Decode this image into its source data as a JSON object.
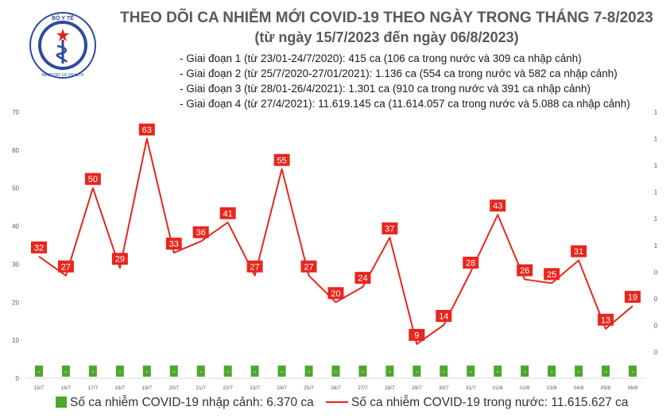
{
  "logo": {
    "top_text": "BỘ Y TẾ",
    "bottom_text": "MINISTRY OF HEALTH"
  },
  "header": {
    "title": "THEO DÕI CA NHIỄM MỚI COVID-19 THEO NGÀY TRONG THÁNG 7-8/2023",
    "subtitle": "(từ ngày 15/7/2023 đến ngày 06/8/2023)"
  },
  "phases": [
    "- Giai đoạn 1 (từ 23/01-24/7/2020): 415 ca (106 ca trong nước và 309 ca nhập cảnh)",
    "- Giai đoạn 2 (từ 25/7/2020-27/01/2021): 1.136 ca (554 ca trong nước và 582 ca nhập cảnh)",
    "- Giai đoạn 3 (từ 28/01-26/4/2021): 1.301 ca (910 ca trong nước và 391 ca nhập cảnh)",
    "- Giai đoạn 4 (từ 27/4/2021): 11.619.145 ca (11.614.057 ca trong nước và 5.088 ca nhập cảnh)"
  ],
  "legend": {
    "imported": "Số ca nhiễm COVID-19 nhập cảnh: 6.370 ca",
    "domestic": "Số ca nhiễm COVID-19 trong nước: 11.615.627 ca"
  },
  "colors": {
    "line": "#e8261d",
    "bar": "#4ea72e",
    "label_box": "#e8261d",
    "axis_text": "#595959"
  },
  "chart_data": {
    "type": "bar+line",
    "categories": [
      "15/7",
      "16/7",
      "17/7",
      "18/7",
      "19/7",
      "20/7",
      "21/7",
      "22/7",
      "23/7",
      "24/7",
      "25/7",
      "26/7",
      "27/7",
      "28/7",
      "29/7",
      "30/7",
      "31/7",
      "01/8",
      "02/8",
      "03/8",
      "04/8",
      "05/8",
      "06/8"
    ],
    "series": [
      {
        "name": "Số ca nhiễm COVID-19 trong nước",
        "type": "line",
        "axis": "left",
        "values": [
          32,
          27,
          50,
          29,
          63,
          33,
          36,
          41,
          27,
          55,
          27,
          20,
          24,
          37,
          9,
          14,
          28,
          43,
          26,
          25,
          31,
          13,
          19
        ]
      },
      {
        "name": "Số ca nhiễm COVID-19 nhập cảnh",
        "type": "bar",
        "axis": "right",
        "values": [
          0,
          0,
          0,
          0,
          0,
          0,
          0,
          0,
          0,
          0,
          0,
          0,
          0,
          0,
          0,
          0,
          0,
          0,
          0,
          0,
          0,
          0,
          0
        ],
        "bar_labels": [
          "-",
          "-",
          "-",
          "-",
          "-",
          "-",
          "-",
          "-",
          "-",
          "-",
          "-",
          "-",
          "-",
          "-",
          "-",
          "-",
          "-",
          "-",
          "-",
          "-",
          "-",
          "-",
          "-"
        ]
      }
    ],
    "y_left": {
      "ticks": [
        0,
        10,
        20,
        30,
        40,
        50,
        60,
        70
      ],
      "ylim": [
        0,
        70
      ]
    },
    "y_right": {
      "tick_labels": [
        "0",
        "0",
        "0",
        "0",
        "1",
        "1",
        "1",
        "1",
        "1",
        "1"
      ]
    },
    "legend_position": "bottom",
    "grid": false
  }
}
